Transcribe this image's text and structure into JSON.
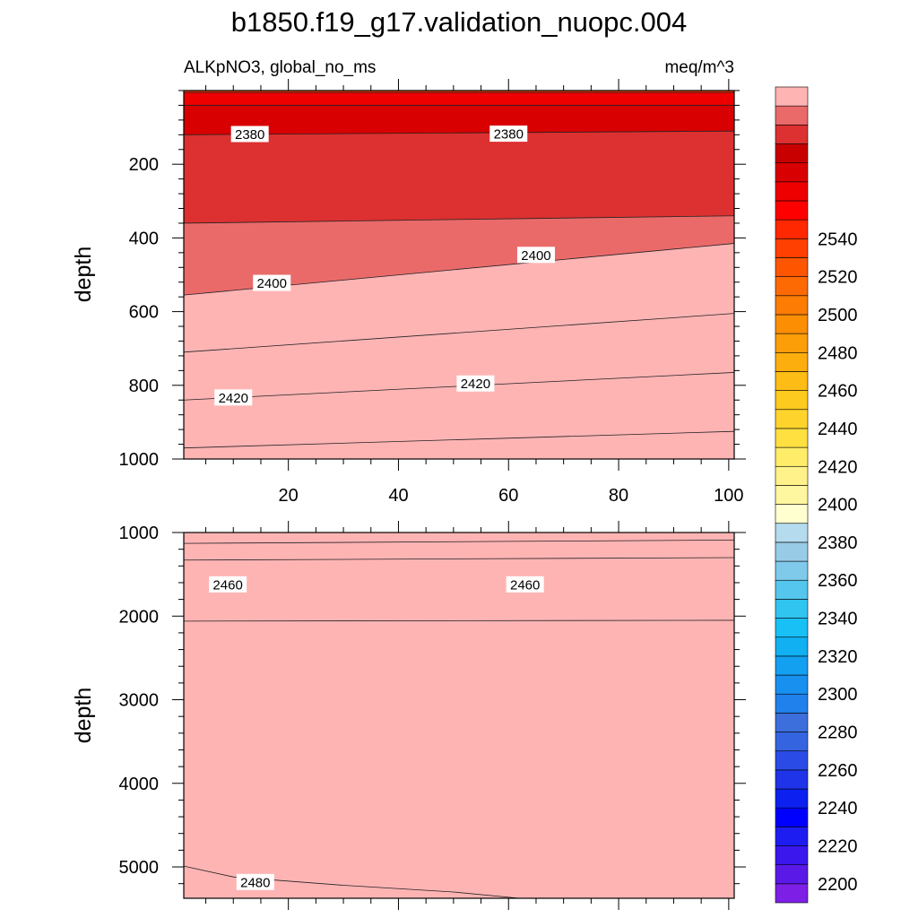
{
  "chart_data": {
    "type": "heatmap",
    "title": "b1850.f19_g17.validation_nuopc.004",
    "variable_label": "ALKpNO3, global_no_ms",
    "units": "meq/m^3",
    "colorbar": {
      "tick_labels": [
        "2200",
        "2220",
        "2240",
        "2260",
        "2280",
        "2300",
        "2320",
        "2340",
        "2360",
        "2380",
        "2400",
        "2420",
        "2440",
        "2460",
        "2480",
        "2500",
        "2520",
        "2540"
      ],
      "levels": [
        2195,
        2200,
        2205,
        2210,
        2215,
        2220,
        2225,
        2230,
        2235,
        2240,
        2245,
        2250,
        2255,
        2260,
        2265,
        2270,
        2275,
        2280,
        2285,
        2290,
        2295,
        2300,
        2305,
        2310,
        2315,
        2320,
        2325,
        2330,
        2335,
        2340,
        2345,
        2350,
        2355,
        2360,
        2365,
        2370,
        2375,
        2380,
        2385,
        2390,
        2395,
        2400,
        2405,
        2410,
        2415,
        2420,
        2425,
        2430,
        2435,
        2440,
        2445,
        2450,
        2455,
        2460,
        2465,
        2470,
        2475,
        2480,
        2485,
        2490,
        2495,
        2500,
        2505,
        2510,
        2515,
        2520,
        2525,
        2530,
        2535,
        2540,
        2545,
        2550,
        2555,
        2560
      ],
      "colors": [
        "#7e1fe6",
        "#5b19e8",
        "#3b17ee",
        "#1d1df2",
        "#0000ff",
        "#0c20ef",
        "#1f33e8",
        "#2a4be6",
        "#3464e0",
        "#3c6fdc",
        "#2080ec",
        "#1890f0",
        "#13a0f0",
        "#10b0f2",
        "#18c0f6",
        "#30c4f0",
        "#55c6ee",
        "#7fcaea",
        "#98cce6",
        "#b4dcee",
        "#ffffd0",
        "#fff7a0",
        "#fff28a",
        "#ffed6a",
        "#ffe040",
        "#fed42c",
        "#fdca20",
        "#fdbc16",
        "#fcae0e",
        "#fc9e08",
        "#fc8e04",
        "#fc7c04",
        "#fd6a04",
        "#fe5600",
        "#ff4000",
        "#ff2800",
        "#ff0000",
        "#ee0000",
        "#d80000",
        "#c80000",
        "#dd3030",
        "#ea6a6a",
        "#ffb4b4"
      ],
      "color_edges": [
        2195,
        2200,
        2205,
        2210,
        2215,
        2220,
        2225,
        2230,
        2235,
        2240,
        2245,
        2250,
        2255,
        2260,
        2265,
        2270,
        2275,
        2280,
        2285,
        2290,
        2295,
        2300,
        2305,
        2310,
        2315,
        2320,
        2325,
        2330,
        2335,
        2340,
        2345,
        2350,
        2355,
        2360,
        2365,
        2370,
        2375,
        2380,
        2385,
        2390,
        2395,
        2400,
        2405,
        2410,
        2415,
        2420,
        2425,
        2430,
        2435,
        2440,
        2445,
        2450,
        2455,
        2460,
        2465,
        2470,
        2475,
        2480,
        2485,
        2490,
        2495,
        2500,
        2505,
        2510,
        2515,
        2520,
        2525,
        2530,
        2535,
        2540,
        2545,
        2550,
        2555,
        2560
      ]
    },
    "panels": [
      {
        "name": "upper",
        "xlim": [
          1,
          101
        ],
        "ylim": [
          1000,
          0
        ],
        "yticks": [
          "200",
          "400",
          "600",
          "800",
          "1000"
        ],
        "ytick_values": [
          200,
          400,
          600,
          800,
          1000
        ],
        "xticks": [
          "20",
          "40",
          "60",
          "80",
          "100"
        ],
        "xtick_values": [
          20,
          40,
          60,
          80,
          100
        ],
        "ylabel": "depth",
        "bands": [
          {
            "value": 2365,
            "top": [
              0,
              0
            ],
            "bottom": [
              5,
              5
            ]
          },
          {
            "value": 2380,
            "top": [
              5,
              5
            ],
            "bottom": [
              40,
              40
            ]
          },
          {
            "value": 2385,
            "top": [
              40,
              40
            ],
            "bottom": [
              120,
              110
            ]
          },
          {
            "value": 2395,
            "top": [
              120,
              110
            ],
            "bottom": [
              360,
              340
            ]
          },
          {
            "value": 2400,
            "top": [
              360,
              340
            ],
            "bottom": [
              555,
              415
            ]
          },
          {
            "value": 2405,
            "top": [
              555,
              415
            ],
            "bottom": [
              710,
              605
            ]
          },
          {
            "value": 2415,
            "top": [
              710,
              605
            ],
            "bottom": [
              840,
              765
            ]
          },
          {
            "value": 2425,
            "top": [
              840,
              765
            ],
            "bottom": [
              970,
              925
            ]
          },
          {
            "value": 2435,
            "top": [
              970,
              925
            ],
            "bottom": [
              1000,
              1000
            ]
          }
        ],
        "contour_labels": [
          {
            "text": "2380",
            "x": 13,
            "depth": 118
          },
          {
            "text": "2380",
            "x": 60,
            "depth": 117
          },
          {
            "text": "2400",
            "x": 17,
            "depth": 522
          },
          {
            "text": "2400",
            "x": 65,
            "depth": 446
          },
          {
            "text": "2420",
            "x": 10,
            "depth": 833
          },
          {
            "text": "2420",
            "x": 54,
            "depth": 795
          }
        ]
      },
      {
        "name": "lower",
        "xlim": [
          1,
          101
        ],
        "ylim": [
          5375,
          1000
        ],
        "yticks": [
          "1000",
          "2000",
          "3000",
          "4000",
          "5000"
        ],
        "ytick_values": [
          1000,
          2000,
          3000,
          4000,
          5000
        ],
        "ylabel": "depth",
        "bands": [
          {
            "value": 2450,
            "top": [
              1000,
              1000
            ],
            "bottom": [
              1130,
              1090
            ]
          },
          {
            "value": 2455,
            "top": [
              1130,
              1090
            ],
            "bottom": [
              1330,
              1300
            ]
          },
          {
            "value": 2460,
            "top": [
              1330,
              1300
            ],
            "bottom": [
              2060,
              2050
            ]
          },
          {
            "value": 2470,
            "top": [
              2060,
              2050
            ],
            "bottom": [
              5375,
              5375
            ]
          }
        ],
        "deep_region": {
          "value": 2480,
          "points": [
            [
              1,
              4990
            ],
            [
              10,
              5120
            ],
            [
              30,
              5220
            ],
            [
              50,
              5300
            ],
            [
              62,
              5375
            ],
            [
              1,
              5375
            ]
          ]
        },
        "contour_labels": [
          {
            "text": "2460",
            "x": 9,
            "depth": 1620
          },
          {
            "text": "2460",
            "x": 63,
            "depth": 1620
          },
          {
            "text": "2480",
            "x": 14,
            "depth": 5180
          }
        ]
      }
    ]
  }
}
